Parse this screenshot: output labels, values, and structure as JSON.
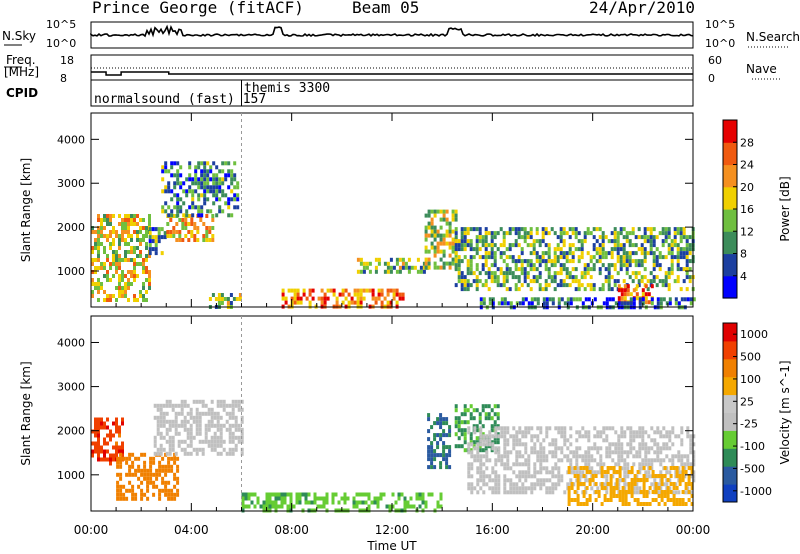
{
  "header": {
    "station": "Prince George (fitACF)",
    "beam": "Beam 05",
    "date": "24/Apr/2010"
  },
  "noise_panel": {
    "left_label": "N.Sky",
    "right_label": "N.Search",
    "left_ticks": [
      "10^5",
      "10^0"
    ],
    "right_ticks": [
      "10^5",
      "10^0"
    ]
  },
  "freq_panel": {
    "left_label_line1": "Freq.",
    "left_label_line2": "[MHz]",
    "right_label": "Nave",
    "left_ticks": [
      "18",
      "8"
    ],
    "right_ticks": [
      "60",
      "0"
    ]
  },
  "cpid_panel": {
    "label": "CPID",
    "modes": [
      {
        "name": "normalsound (fast)",
        "id": "157",
        "start_hour": 0
      },
      {
        "name": "themis",
        "id": "3300",
        "start_hour": 6
      }
    ]
  },
  "colors": {
    "power_scale": [
      "#0000ff",
      "#1c3fa0",
      "#3c8c5a",
      "#6fbf3f",
      "#f0d000",
      "#f59020",
      "#f05a10",
      "#e60000"
    ],
    "velocity_scale": [
      "#1040c0",
      "#2a5aa0",
      "#2e8b57",
      "#66cc33",
      "#c0c0c0",
      "#c8c8c8",
      "#f5a800",
      "#f08000",
      "#f04000",
      "#e00000"
    ]
  },
  "chart_data": [
    {
      "type": "heatmap",
      "title": "",
      "xlabel": "",
      "ylabel": "Slant Range [km]",
      "x_ticks": [
        "00:00",
        "04:00",
        "08:00",
        "12:00",
        "16:00",
        "20:00",
        "00:00"
      ],
      "y_ticks": [
        "1000",
        "2000",
        "3000",
        "4000"
      ],
      "xlim": [
        0,
        24
      ],
      "ylim": [
        180,
        4600
      ],
      "colorbar_label": "Power [dB]",
      "colorbar_ticks": [
        "4",
        "8",
        "12",
        "16",
        "20",
        "24",
        "28"
      ],
      "clim": [
        0,
        32
      ],
      "regions": [
        {
          "t0": 0.0,
          "t1": 2.3,
          "r0": 300,
          "r1": 2300,
          "value": 18
        },
        {
          "t0": 2.3,
          "t1": 3.0,
          "r0": 1400,
          "r1": 2000,
          "value": 10
        },
        {
          "t0": 3.0,
          "t1": 4.8,
          "r0": 1700,
          "r1": 2300,
          "value": 20
        },
        {
          "t0": 2.8,
          "t1": 5.9,
          "r0": 2300,
          "r1": 3500,
          "value": 9
        },
        {
          "t0": 4.7,
          "t1": 6.0,
          "r0": 200,
          "r1": 500,
          "value": 14
        },
        {
          "t0": 7.6,
          "t1": 12.5,
          "r0": 200,
          "r1": 600,
          "value": 24
        },
        {
          "t0": 10.6,
          "t1": 13.4,
          "r0": 1000,
          "r1": 1300,
          "value": 14
        },
        {
          "t0": 13.3,
          "t1": 14.5,
          "r0": 1100,
          "r1": 2400,
          "value": 16
        },
        {
          "t0": 14.5,
          "t1": 24.0,
          "r0": 600,
          "r1": 2000,
          "value": 12
        },
        {
          "t0": 21.0,
          "t1": 22.4,
          "r0": 300,
          "r1": 700,
          "value": 24
        },
        {
          "t0": 15.5,
          "t1": 24.0,
          "r0": 200,
          "r1": 400,
          "value": 8
        }
      ]
    },
    {
      "type": "heatmap",
      "title": "",
      "xlabel": "Time UT",
      "ylabel": "Slant Range [km]",
      "x_ticks": [
        "00:00",
        "04:00",
        "08:00",
        "12:00",
        "16:00",
        "20:00",
        "00:00"
      ],
      "y_ticks": [
        "1000",
        "2000",
        "3000",
        "4000"
      ],
      "xlim": [
        0,
        24
      ],
      "ylim": [
        180,
        4600
      ],
      "colorbar_label": "Velocity [m s^-1]",
      "colorbar_ticks": [
        "1000",
        "500",
        "100",
        "25",
        "-25",
        "-100",
        "-500",
        "-1000"
      ],
      "clim": [
        -1000,
        1000
      ],
      "regions": [
        {
          "t0": 0.0,
          "t1": 1.2,
          "r0": 1300,
          "r1": 2300,
          "value": -800
        },
        {
          "t0": 1.0,
          "t1": 3.5,
          "r0": 500,
          "r1": 1500,
          "value": -300
        },
        {
          "t0": 2.5,
          "t1": 6.0,
          "r0": 1500,
          "r1": 2700,
          "value": 0
        },
        {
          "t0": 6.0,
          "t1": 14.0,
          "r0": 200,
          "r1": 600,
          "value": 80
        },
        {
          "t0": 13.4,
          "t1": 14.3,
          "r0": 1200,
          "r1": 2400,
          "value": 600
        },
        {
          "t0": 14.5,
          "t1": 16.2,
          "r0": 1600,
          "r1": 2600,
          "value": 120
        },
        {
          "t0": 15.0,
          "t1": 24.0,
          "r0": 600,
          "r1": 2100,
          "value": 0
        },
        {
          "t0": 19.0,
          "t1": 24.0,
          "r0": 300,
          "r1": 1200,
          "value": -50
        }
      ]
    }
  ]
}
